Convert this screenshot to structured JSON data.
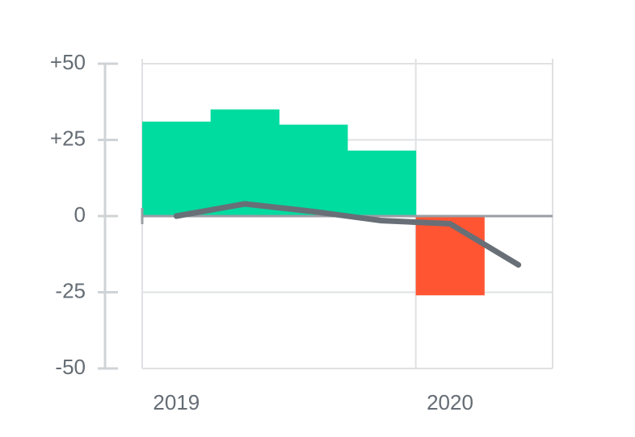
{
  "chart_data": {
    "type": "bar-line",
    "categories": [
      "2019",
      null,
      null,
      null,
      "2020",
      null
    ],
    "series": [
      {
        "type": "bar",
        "color": "#00dba0",
        "negative_color": "#ff5533",
        "values": [
          31,
          35,
          30,
          21.5,
          -26,
          null
        ]
      },
      {
        "type": "line",
        "color": "#686f77",
        "values": [
          0,
          4,
          1.5,
          -1.5,
          -2.5,
          -16
        ]
      }
    ],
    "ylim": [
      -50,
      50
    ],
    "yticks": [
      {
        "value": 50,
        "label": "+50"
      },
      {
        "value": 25,
        "label": "+25"
      },
      0,
      -25,
      -50
    ],
    "grid": true
  }
}
